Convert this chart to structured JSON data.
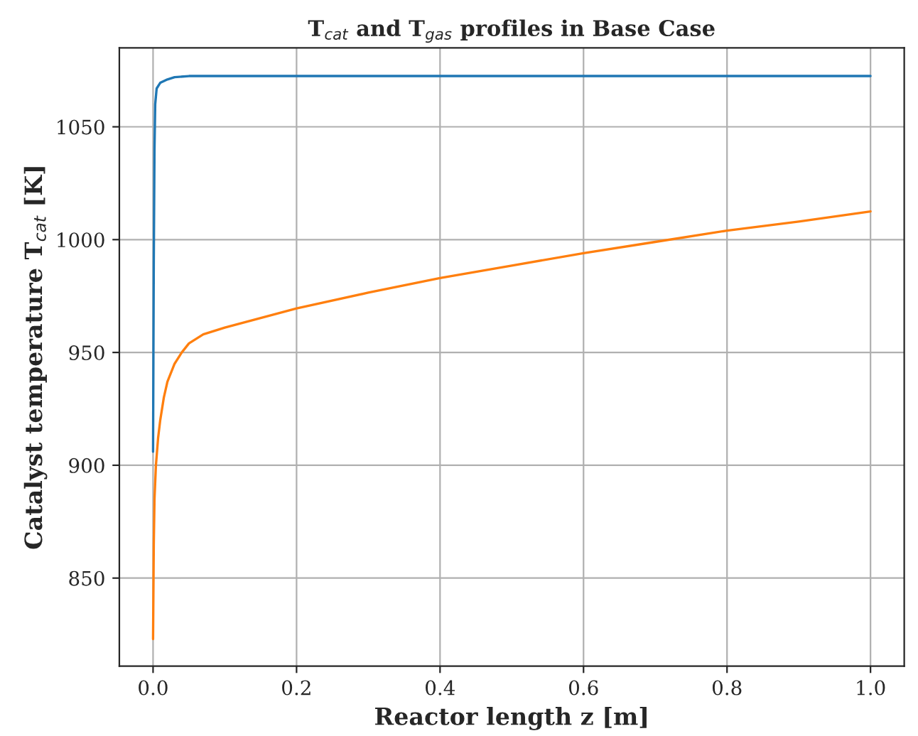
{
  "chart_data": {
    "type": "line",
    "title": "T$_{cat}$ and T$_{gas}$ profiles in Base Case",
    "xlabel": "Reactor length z [m]",
    "ylabel": "Catalyst temperature T$_{cat}$ [K]",
    "series": [
      {
        "color": "#1f77b4",
        "x": [
          0,
          0.001,
          0.002,
          0.003,
          0.005,
          0.01,
          0.02,
          0.03,
          0.05,
          0.08,
          0.1,
          0.2,
          0.4,
          0.6,
          0.8,
          1.0
        ],
        "values": [
          906,
          990,
          1040,
          1060,
          1067,
          1069.5,
          1071,
          1072,
          1072.5,
          1072.5,
          1072.5,
          1072.5,
          1072.5,
          1072.5,
          1072.5,
          1072.5
        ]
      },
      {
        "color": "#ff7f0e",
        "x": [
          0,
          0.001,
          0.002,
          0.004,
          0.007,
          0.01,
          0.015,
          0.02,
          0.03,
          0.04,
          0.05,
          0.07,
          0.1,
          0.2,
          0.3,
          0.4,
          0.5,
          0.6,
          0.7,
          0.8,
          0.9,
          1.0
        ],
        "values": [
          823,
          865,
          885,
          900,
          912,
          920,
          930,
          937,
          945,
          950,
          954,
          958,
          961,
          969.5,
          976.5,
          983,
          988.5,
          994,
          999,
          1004,
          1008,
          1012.5
        ]
      }
    ],
    "xlim": [
      -0.047,
      1.047
    ],
    "ylim": [
      811,
      1085
    ],
    "xticks": [
      {
        "value": 0,
        "label": "0.0"
      },
      0.2,
      0.4,
      0.6,
      0.8,
      {
        "value": 1,
        "label": "1.0"
      }
    ],
    "yticks": [
      850,
      900,
      950,
      1000,
      1050
    ],
    "grid": true,
    "legend": false,
    "line_style": "solid",
    "marker": "none"
  }
}
